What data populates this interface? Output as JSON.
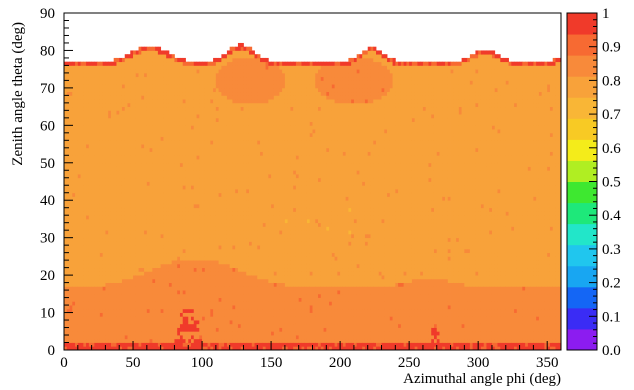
{
  "chart_data": {
    "type": "heatmap",
    "title": "",
    "xlabel": "Azimuthal angle phi (deg)",
    "ylabel": "Zenith angle theta (deg)",
    "xlim": [
      0,
      360
    ],
    "ylim": [
      0,
      90
    ],
    "zlim": [
      0,
      1
    ],
    "x_ticks": [
      "0",
      "50",
      "100",
      "150",
      "200",
      "250",
      "300",
      "350"
    ],
    "y_ticks": [
      "0",
      "10",
      "20",
      "30",
      "40",
      "50",
      "60",
      "70",
      "80",
      "90"
    ],
    "colorbar_ticks": [
      "0.0",
      "0.1",
      "0.2",
      "0.3",
      "0.4",
      "0.5",
      "0.6",
      "0.7",
      "0.8",
      "0.9",
      "1"
    ],
    "colorbar_colors": [
      "#8c1cf0",
      "#3a2cf5",
      "#1466f5",
      "#18a6f2",
      "#20c6ee",
      "#22e6c9",
      "#1ee87a",
      "#3ee830",
      "#b0ee22",
      "#f4ec1a",
      "#f8ca24",
      "#f9b636",
      "#f8a23a",
      "#f88a3a",
      "#f76a32",
      "#f03a2a"
    ],
    "grid": false,
    "legend": "colorbar-right",
    "bins": {
      "phi_step_deg": 2,
      "theta_step_deg": 1
    },
    "regions": [
      {
        "theta_range": [
          0,
          2
        ],
        "value_range": [
          0.9,
          1.0
        ],
        "description": "red bottom rows"
      },
      {
        "theta_range": [
          2,
          17
        ],
        "value_range": [
          0.85,
          0.9
        ],
        "description": "dark orange band"
      },
      {
        "theta_range": [
          17,
          25
        ],
        "value_range": [
          0.8,
          0.9
        ],
        "description": "orange bumps at phi ~100 and ~260"
      },
      {
        "theta_range": [
          25,
          60
        ],
        "value_range": [
          0.75,
          0.82
        ],
        "description": "light orange plateau"
      },
      {
        "theta_range": [
          60,
          78
        ],
        "value_range": [
          0.8,
          0.88
        ],
        "description": "darker lobes near phi ~135 and ~215"
      },
      {
        "theta_range": [
          76,
          82
        ],
        "value_range": [
          0.88,
          1.0
        ],
        "description": "red upper edge, coverage limit ~77-82 deg"
      }
    ]
  }
}
